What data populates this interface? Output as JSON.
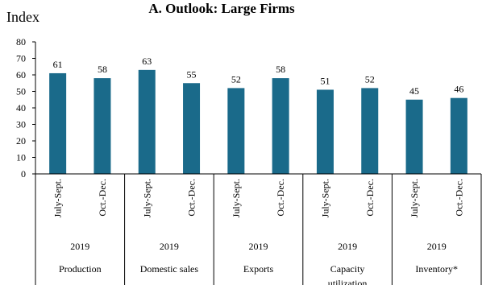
{
  "chart_data": {
    "type": "bar",
    "title": "A. Outlook: Large Firms",
    "ylabel": "Index",
    "ylim": [
      0,
      80
    ],
    "yticks": [
      0,
      10,
      20,
      30,
      40,
      50,
      60,
      70,
      80
    ],
    "grid": false,
    "bar_color": "#1a6a8a",
    "categories": [
      "July-Sept.",
      "Oct.-Dec.",
      "July-Sept.",
      "Oct.-Dec.",
      "July-Sept.",
      "Oct.-Dec.",
      "July-Sept.",
      "Oct.-Dec.",
      "July-Sept.",
      "Oct.-Dec."
    ],
    "values": [
      61,
      58,
      63,
      55,
      52,
      58,
      51,
      52,
      45,
      46
    ],
    "groups": [
      {
        "year": "2019",
        "name": "Production"
      },
      {
        "year": "2019",
        "name": "Domestic sales"
      },
      {
        "year": "2019",
        "name": "Exports"
      },
      {
        "year": "2019",
        "name": "Capacity utilization"
      },
      {
        "year": "2019",
        "name": "Inventory*"
      }
    ]
  }
}
